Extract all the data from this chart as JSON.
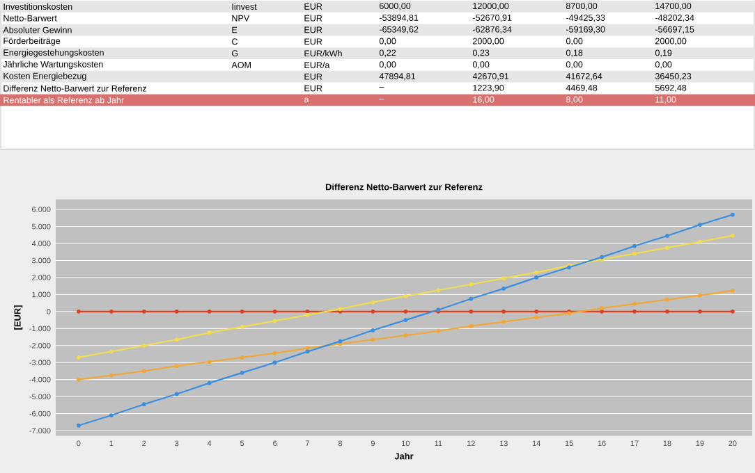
{
  "chart_data": {
    "type": "line",
    "title": "Differenz Netto-Barwert zur Referenz",
    "xlabel": "Jahr",
    "ylabel": "[EUR]",
    "x": [
      0,
      1,
      2,
      3,
      4,
      5,
      6,
      7,
      8,
      9,
      10,
      11,
      12,
      13,
      14,
      15,
      16,
      17,
      18,
      19,
      20
    ],
    "series": [
      {
        "color": "#e04020",
        "values": [
          0,
          0,
          0,
          0,
          0,
          0,
          0,
          0,
          0,
          0,
          0,
          0,
          0,
          0,
          0,
          0,
          0,
          0,
          0,
          0,
          0
        ]
      },
      {
        "color": "#f0dc50",
        "values": [
          -2700,
          -2350,
          -2000,
          -1650,
          -1250,
          -900,
          -550,
          -200,
          150,
          550,
          900,
          1250,
          1600,
          1950,
          2300,
          2700,
          3050,
          3400,
          3750,
          4100,
          4469
        ]
      },
      {
        "color": "#f0a838",
        "values": [
          -4000,
          -3750,
          -3500,
          -3200,
          -2950,
          -2700,
          -2450,
          -2150,
          -1900,
          -1650,
          -1400,
          -1150,
          -850,
          -600,
          -350,
          -100,
          200,
          450,
          700,
          950,
          1224
        ]
      },
      {
        "color": "#3c8ee0",
        "values": [
          -6700,
          -6100,
          -5450,
          -4850,
          -4200,
          -3600,
          -3000,
          -2350,
          -1750,
          -1100,
          -500,
          100,
          750,
          1350,
          2000,
          2600,
          3200,
          3850,
          4450,
          5100,
          5692
        ]
      }
    ],
    "xlim": [
      -0.7,
      20.6
    ],
    "ylim": [
      -7300,
      6600
    ],
    "xticks": [
      0,
      1,
      2,
      3,
      4,
      5,
      6,
      7,
      8,
      9,
      10,
      11,
      12,
      13,
      14,
      15,
      16,
      17,
      18,
      19,
      20
    ],
    "yticks": [
      {
        "value": -7000,
        "label": "-7.000"
      },
      {
        "value": -6000,
        "label": "-6.000"
      },
      {
        "value": -5000,
        "label": "-5.000"
      },
      {
        "value": -4000,
        "label": "-4.000"
      },
      {
        "value": -3000,
        "label": "-3.000"
      },
      {
        "value": -2000,
        "label": "-2.000"
      },
      {
        "value": -1000,
        "label": "-1.000"
      },
      0,
      {
        "value": 1000,
        "label": "1.000"
      },
      {
        "value": 2000,
        "label": "2.000"
      },
      {
        "value": 3000,
        "label": "3.000"
      },
      {
        "value": 4000,
        "label": "4.000"
      },
      {
        "value": 5000,
        "label": "5.000"
      },
      {
        "value": 6000,
        "label": "6.000"
      }
    ],
    "grid": "y",
    "marker": "circle",
    "line_style": "solid",
    "annotations": [
      "Investitionskosten",
      "Iinvest",
      "EUR",
      "6000,00",
      "12000,00",
      "8700,00",
      "14700,00",
      "Netto-Barwert",
      "NPV",
      "EUR",
      "-53894,81",
      "-52670,91",
      "-49425,33",
      "-48202,34",
      "Absoluter Gewinn",
      "E",
      "EUR",
      "-65349,62",
      "-62876,34",
      "-59169,30",
      "-56697,15",
      "Förderbeiträge",
      "C",
      "EUR",
      "0,00",
      "2000,00",
      "0,00",
      "2000,00",
      "Energiegestehungskosten",
      "G",
      "EUR/kWh",
      "0,22",
      "0,23",
      "0,18",
      "0,19",
      "Jährliche Wartungskosten",
      "AOM",
      "EUR/a",
      "0,00",
      "0,00",
      "0,00",
      "0,00",
      "Kosten Energiebezug",
      "EUR",
      "47894,81",
      "42670,91",
      "41672,64",
      "36450,23",
      "Differenz Netto-Barwert zur Referenz",
      "EUR",
      "–",
      "1223,90",
      "4469,48",
      "5692,48",
      "Rentabler als Referenz ab Jahr",
      "a",
      "–",
      "16,00",
      "8,00",
      "11,00"
    ]
  }
}
